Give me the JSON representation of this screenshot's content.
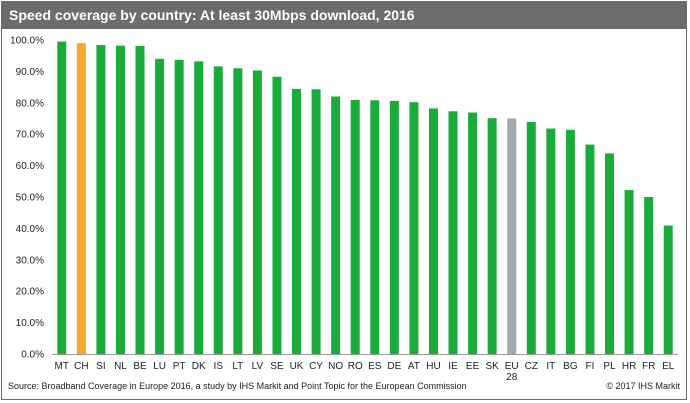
{
  "title": "Speed coverage by country: At least 30Mbps download, 2016",
  "source": "Source: Broadband Coverage in Europe 2016, a study by IHS Markit and Point Topic for the European Commission",
  "copyright": "© 2017 IHS Markit",
  "colors": {
    "default": "#1aac3a",
    "highlight_ch": "#f4a92e",
    "highlight_eu28": "#a3a9b0"
  },
  "chart_data": {
    "type": "bar",
    "title": "Speed coverage by country: At least 30Mbps download, 2016",
    "xlabel": "",
    "ylabel": "",
    "ylim": [
      0,
      100
    ],
    "yticks": [
      "0.0%",
      "10.0%",
      "20.0%",
      "30.0%",
      "40.0%",
      "50.0%",
      "60.0%",
      "70.0%",
      "80.0%",
      "90.0%",
      "100.0%"
    ],
    "grid": false,
    "legend": "none",
    "categories": [
      {
        "label": "MT",
        "sub": ""
      },
      {
        "label": "CH",
        "sub": ""
      },
      {
        "label": "SI",
        "sub": ""
      },
      {
        "label": "NL",
        "sub": ""
      },
      {
        "label": "BE",
        "sub": ""
      },
      {
        "label": "LU",
        "sub": ""
      },
      {
        "label": "PT",
        "sub": ""
      },
      {
        "label": "DK",
        "sub": ""
      },
      {
        "label": "IS",
        "sub": ""
      },
      {
        "label": "LT",
        "sub": ""
      },
      {
        "label": "LV",
        "sub": ""
      },
      {
        "label": "SE",
        "sub": ""
      },
      {
        "label": "UK",
        "sub": ""
      },
      {
        "label": "CY",
        "sub": ""
      },
      {
        "label": "NO",
        "sub": ""
      },
      {
        "label": "RO",
        "sub": ""
      },
      {
        "label": "ES",
        "sub": ""
      },
      {
        "label": "DE",
        "sub": ""
      },
      {
        "label": "AT",
        "sub": ""
      },
      {
        "label": "HU",
        "sub": ""
      },
      {
        "label": "IE",
        "sub": ""
      },
      {
        "label": "EE",
        "sub": ""
      },
      {
        "label": "SK",
        "sub": ""
      },
      {
        "label": "EU",
        "sub": "28"
      },
      {
        "label": "CZ",
        "sub": ""
      },
      {
        "label": "IT",
        "sub": ""
      },
      {
        "label": "BG",
        "sub": ""
      },
      {
        "label": "FI",
        "sub": ""
      },
      {
        "label": "PL",
        "sub": ""
      },
      {
        "label": "HR",
        "sub": ""
      },
      {
        "label": "FR",
        "sub": ""
      },
      {
        "label": "EL",
        "sub": ""
      }
    ],
    "values": [
      99.5,
      99.0,
      98.4,
      98.2,
      98.1,
      94.0,
      93.7,
      93.2,
      91.6,
      91.0,
      90.3,
      88.3,
      84.4,
      84.3,
      82.0,
      80.9,
      80.8,
      80.6,
      80.2,
      78.2,
      77.3,
      76.9,
      75.1,
      75.0,
      73.9,
      71.8,
      71.4,
      66.7,
      63.9,
      52.2,
      50.0,
      40.9
    ],
    "bar_colors": [
      "default",
      "highlight_ch",
      "default",
      "default",
      "default",
      "default",
      "default",
      "default",
      "default",
      "default",
      "default",
      "default",
      "default",
      "default",
      "default",
      "default",
      "default",
      "default",
      "default",
      "default",
      "default",
      "default",
      "default",
      "highlight_eu28",
      "default",
      "default",
      "default",
      "default",
      "default",
      "default",
      "default",
      "default"
    ]
  }
}
